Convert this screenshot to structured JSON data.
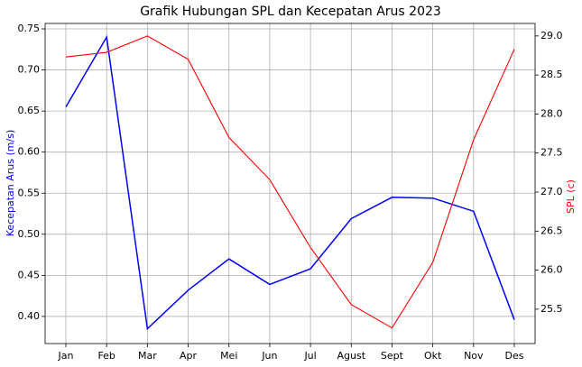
{
  "chart_data": {
    "type": "line",
    "title": "Grafik Hubungan SPL dan Kecepatan Arus 2023",
    "y_label": "Kecepatan Arus (m/s)",
    "y2_label": "SPL (c)",
    "categories": [
      "Jan",
      "Feb",
      "Mar",
      "Apr",
      "Mei",
      "Jun",
      "Jul",
      "Agust",
      "Sept",
      "Okt",
      "Nov",
      "Des"
    ],
    "series": [
      {
        "name": "Kecepatan Arus (m/s)",
        "color": "#0000ff",
        "axis": "y",
        "values": [
          0.655,
          0.74,
          0.385,
          0.432,
          0.47,
          0.439,
          0.458,
          0.519,
          0.545,
          0.544,
          0.528,
          0.396
        ]
      },
      {
        "name": "SPL (c)",
        "color": "#ff0000",
        "axis": "y2",
        "values": [
          28.73,
          28.79,
          29.0,
          28.7,
          27.7,
          27.16,
          26.29,
          25.56,
          25.26,
          26.1,
          27.67,
          28.83
        ]
      }
    ],
    "ylim": [
      0.367,
      0.7566
    ],
    "yticks": [
      {
        "value": 0.4,
        "label": "0.40"
      },
      0.45,
      {
        "value": 0.5,
        "label": "0.50"
      },
      0.55,
      {
        "value": 0.6,
        "label": "0.60"
      },
      0.65,
      {
        "value": 0.7,
        "label": "0.70"
      },
      0.75
    ],
    "y2lim": [
      25.06,
      29.16
    ],
    "y2ticks": [
      25.5,
      {
        "value": 26,
        "label": "26.0"
      },
      26.5,
      {
        "value": 27,
        "label": "27.0"
      },
      27.5,
      {
        "value": 28,
        "label": "28.0"
      },
      28.5,
      {
        "value": 29,
        "label": "29.0"
      }
    ],
    "grid": true
  }
}
